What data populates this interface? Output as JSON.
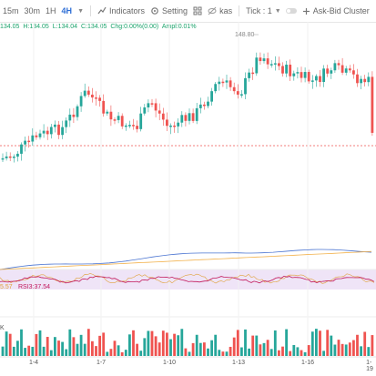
{
  "toolbar": {
    "timeframes": [
      "15m",
      "30m",
      "1H",
      "4H"
    ],
    "active_timeframe": "4H",
    "indicators_label": "Indicators",
    "setting_label": "Setting",
    "kas_label": "kas",
    "tick_label": "Tick : 1",
    "cluster_label": "Ask-Bid Cluster"
  },
  "ohlc": {
    "o": "134.05",
    "h": "H:134.05",
    "l": "L:134.04",
    "c": "C:134.05",
    "chg": "Chg:0.00%(0.00)",
    "ampl": "Ampl:0.01%"
  },
  "price_marker": "148.80",
  "rsi_labels": [
    "5.57",
    "RSI3:37.54"
  ],
  "volume_label": "K",
  "x_labels": [
    "1-4",
    "1-7",
    "1-10",
    "1-13",
    "1-16",
    "1-19"
  ],
  "colors": {
    "up": "#26a69a",
    "down": "#ef5350",
    "accent": "#2f6fd6",
    "ohlc": "#1aa36b",
    "rsi_band": "#efe4f7",
    "ma_blue": "#4a74d1",
    "ma_orange": "#f2b14b"
  }
}
